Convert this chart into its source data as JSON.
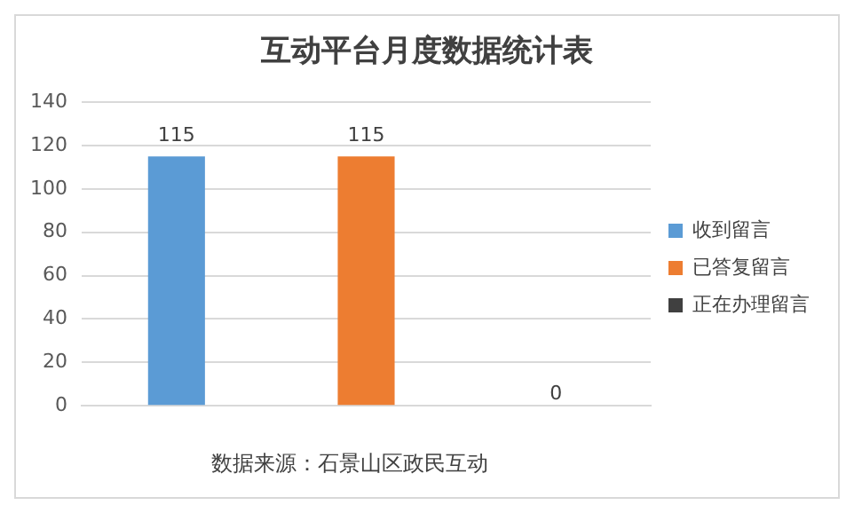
{
  "chart_data": {
    "type": "bar",
    "title": "互动平台月度数据统计表",
    "categories": [
      null,
      null,
      null
    ],
    "series": [
      {
        "name": "收到留言",
        "color": "#5b9bd5",
        "values": [
          115,
          null,
          null
        ]
      },
      {
        "name": "已答复留言",
        "color": "#ed7d31",
        "values": [
          null,
          115,
          null
        ]
      },
      {
        "name": "正在办理留言",
        "color": "#404040",
        "values": [
          null,
          null,
          0
        ]
      }
    ],
    "ylim": [
      0,
      140
    ],
    "yticks": [
      0,
      20,
      40,
      60,
      80,
      100,
      120,
      140
    ],
    "grid": "y",
    "legend": "right",
    "data_labels": true,
    "annotations": [
      "数据来源：石景山区政民互动"
    ]
  }
}
